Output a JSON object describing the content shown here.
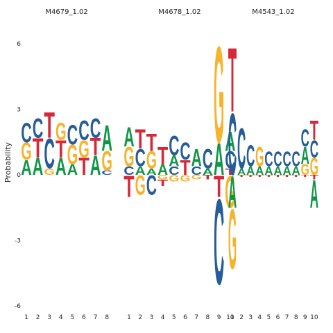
{
  "chart_data": {
    "type": "sequence-logo",
    "ylabel": "Probability",
    "ylim": [
      -6,
      7
    ],
    "yticks": [
      -6,
      -3,
      0,
      3,
      6
    ],
    "colors": {
      "A": "#109648",
      "C": "#255c99",
      "G": "#f7b32b",
      "T": "#d62839"
    },
    "panels": [
      {
        "title": "M4679_1.02",
        "positions": [
          {
            "label": "1",
            "pos": [
              [
                "A",
                0.7
              ],
              [
                "G",
                0.8
              ],
              [
                "C",
                0.9
              ]
            ],
            "neg": []
          },
          {
            "label": "2",
            "pos": [
              [
                "A",
                0.8
              ],
              [
                "T",
                0.9
              ],
              [
                "C",
                0.9
              ]
            ],
            "neg": []
          },
          {
            "label": "3",
            "pos": [
              [
                "G",
                0.3
              ],
              [
                "C",
                1.4
              ],
              [
                "T",
                1.2
              ]
            ],
            "neg": []
          },
          {
            "label": "4",
            "pos": [
              [
                "A",
                0.8
              ],
              [
                "T",
                0.8
              ],
              [
                "G",
                0.8
              ]
            ],
            "neg": []
          },
          {
            "label": "5",
            "pos": [
              [
                "A",
                0.5
              ],
              [
                "G",
                0.9
              ],
              [
                "C",
                0.9
              ]
            ],
            "neg": []
          },
          {
            "label": "6",
            "pos": [
              [
                "T",
                0.8
              ],
              [
                "G",
                0.8
              ],
              [
                "C",
                0.9
              ]
            ],
            "neg": []
          },
          {
            "label": "7",
            "pos": [
              [
                "A",
                0.9
              ],
              [
                "T",
                0.8
              ],
              [
                "C",
                0.9
              ]
            ],
            "neg": []
          },
          {
            "label": "8",
            "pos": [
              [
                "C",
                0.2
              ],
              [
                "G",
                0.9
              ],
              [
                "A",
                1.2
              ]
            ],
            "neg": []
          }
        ]
      },
      {
        "title": "M4678_1.02",
        "positions": [
          {
            "label": "1",
            "pos": [
              [
                "C",
                0.4
              ],
              [
                "G",
                0.9
              ],
              [
                "A",
                0.9
              ]
            ],
            "neg": [
              [
                "T",
                1.0
              ]
            ]
          },
          {
            "label": "2",
            "pos": [
              [
                "A",
                0.4
              ],
              [
                "C",
                0.8
              ],
              [
                "T",
                0.9
              ]
            ],
            "neg": [
              [
                "G",
                0.9
              ]
            ]
          },
          {
            "label": "3",
            "pos": [
              [
                "A",
                0.3
              ],
              [
                "G",
                0.8
              ],
              [
                "T",
                0.8
              ]
            ],
            "neg": [
              [
                "C",
                0.9
              ]
            ]
          },
          {
            "label": "4",
            "pos": [
              [
                "A",
                0.5
              ],
              [
                "T",
                0.8
              ]
            ],
            "neg": [
              [
                "G",
                0.2
              ],
              [
                "T",
                0.3
              ]
            ]
          },
          {
            "label": "5",
            "pos": [
              [
                "C",
                0.4
              ],
              [
                "A",
                0.5
              ],
              [
                "C",
                0.9
              ]
            ],
            "neg": [
              [
                "G",
                0.3
              ]
            ]
          },
          {
            "label": "6",
            "pos": [
              [
                "T",
                0.7
              ],
              [
                "C",
                0.8
              ]
            ],
            "neg": [
              [
                "G",
                0.3
              ]
            ]
          },
          {
            "label": "7",
            "pos": [
              [
                "C",
                0.4
              ],
              [
                "A",
                0.8
              ]
            ],
            "neg": [
              [
                "G",
                0.2
              ]
            ]
          },
          {
            "label": "8",
            "pos": [
              [
                "A",
                0.3
              ],
              [
                "C",
                0.9
              ]
            ],
            "neg": [
              [
                "T",
                0.2
              ]
            ]
          },
          {
            "label": "9",
            "pos": [
              [
                "A",
                1.5
              ],
              [
                "G",
                4.5
              ]
            ],
            "neg": [
              [
                "T",
                1.0
              ],
              [
                "C",
                4.0
              ]
            ]
          },
          {
            "label": "10",
            "pos": [
              [
                "T",
                0.3
              ],
              [
                "C",
                0.8
              ],
              [
                "A",
                0.9
              ]
            ],
            "neg": [
              [
                "G",
                1.5
              ]
            ]
          }
        ]
      },
      {
        "title": "M4543_1.02",
        "positions": [
          {
            "label": "1",
            "pos": [
              [
                "C",
                2.9
              ],
              [
                "T",
                3.0
              ]
            ],
            "neg": [
              [
                "A",
                1.5
              ],
              [
                "G",
                2.8
              ]
            ]
          },
          {
            "label": "2",
            "pos": [
              [
                "A",
                0.3
              ],
              [
                "C",
                1.9
              ]
            ],
            "neg": [
              [
                "T",
                0.1
              ]
            ]
          },
          {
            "label": "3",
            "pos": [
              [
                "A",
                0.4
              ],
              [
                "C",
                1.0
              ]
            ],
            "neg": [
              [
                "T",
                0.1
              ]
            ]
          },
          {
            "label": "4",
            "pos": [
              [
                "A",
                0.4
              ],
              [
                "G",
                0.9
              ]
            ],
            "neg": [
              [
                "T",
                0.1
              ]
            ]
          },
          {
            "label": "5",
            "pos": [
              [
                "A",
                0.4
              ],
              [
                "C",
                0.7
              ]
            ],
            "neg": [
              [
                "T",
                0.1
              ]
            ]
          },
          {
            "label": "6",
            "pos": [
              [
                "A",
                0.4
              ],
              [
                "C",
                0.7
              ]
            ],
            "neg": [
              [
                "T",
                0.1
              ]
            ]
          },
          {
            "label": "7",
            "pos": [
              [
                "A",
                0.4
              ],
              [
                "C",
                0.7
              ]
            ],
            "neg": [
              [
                "T",
                0.1
              ]
            ]
          },
          {
            "label": "8",
            "pos": [
              [
                "A",
                0.4
              ],
              [
                "C",
                0.7
              ]
            ],
            "neg": [
              [
                "T",
                0.1
              ]
            ]
          },
          {
            "label": "9",
            "pos": [
              [
                "G",
                0.5
              ],
              [
                "A",
                0.8
              ],
              [
                "C",
                0.8
              ]
            ],
            "neg": [
              [
                "T",
                0.1
              ]
            ]
          },
          {
            "label": "10",
            "pos": [
              [
                "G",
                0.8
              ],
              [
                "C",
                0.8
              ],
              [
                "T",
                0.9
              ]
            ],
            "neg": [
              [
                "T",
                0.2
              ],
              [
                "A",
                1.3
              ]
            ]
          }
        ]
      }
    ]
  }
}
